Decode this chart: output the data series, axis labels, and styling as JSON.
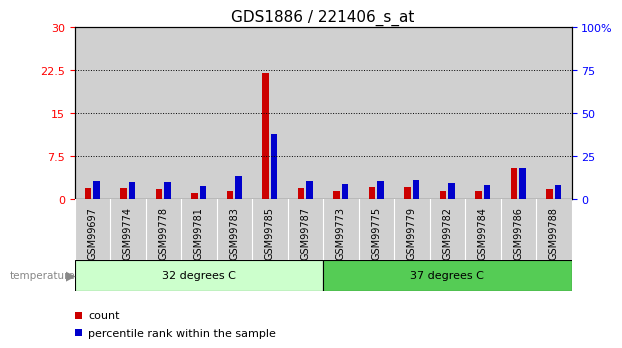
{
  "title": "GDS1886 / 221406_s_at",
  "samples": [
    "GSM99697",
    "GSM99774",
    "GSM99778",
    "GSM99781",
    "GSM99783",
    "GSM99785",
    "GSM99787",
    "GSM99773",
    "GSM99775",
    "GSM99779",
    "GSM99782",
    "GSM99784",
    "GSM99786",
    "GSM99788"
  ],
  "count_values": [
    2.0,
    2.0,
    1.8,
    1.2,
    1.5,
    22.0,
    2.0,
    1.5,
    2.2,
    2.2,
    1.5,
    1.5,
    5.5,
    1.8
  ],
  "percentile_values": [
    11.0,
    10.0,
    10.0,
    8.0,
    13.5,
    38.0,
    10.5,
    9.0,
    10.5,
    11.5,
    9.5,
    8.5,
    18.0,
    8.5
  ],
  "group1_label": "32 degrees C",
  "group2_label": "37 degrees C",
  "group1_count": 7,
  "group2_count": 7,
  "group1_color": "#ccffcc",
  "group2_color": "#55cc55",
  "bar_bg_color": "#d0d0d0",
  "count_color": "#cc0000",
  "percentile_color": "#0000cc",
  "ylim_left": [
    0,
    30
  ],
  "ylim_right": [
    0,
    100
  ],
  "yticks_left": [
    0,
    7.5,
    15,
    22.5,
    30
  ],
  "yticks_right": [
    0,
    25,
    50,
    75,
    100
  ],
  "ytick_labels_left": [
    "0",
    "7.5",
    "15",
    "22.5",
    "30"
  ],
  "ytick_labels_right": [
    "0",
    "25",
    "50",
    "75",
    "100%"
  ],
  "title_fontsize": 11,
  "tick_fontsize": 8
}
